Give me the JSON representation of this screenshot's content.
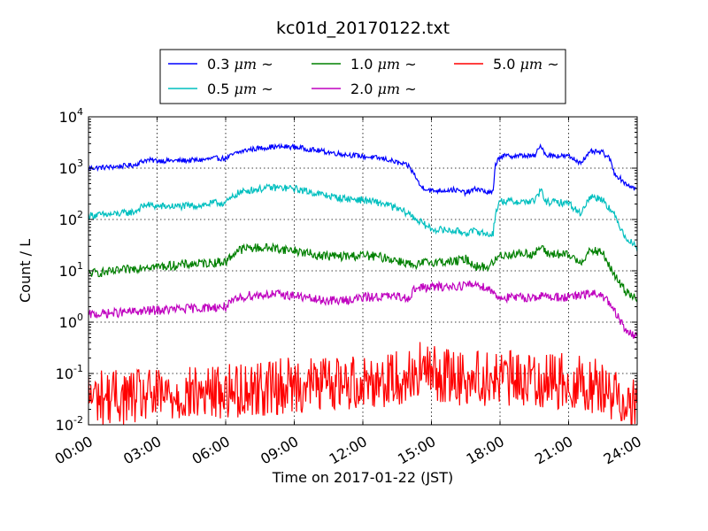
{
  "chart_data": {
    "type": "line",
    "title": "kc01d_20170122.txt",
    "xlabel": "Time on 2017-01-22 (JST)",
    "ylabel": "Count / L",
    "x_range_hours": [
      0,
      24
    ],
    "x_ticks": [
      {
        "hour": 0,
        "label": "00:00"
      },
      {
        "hour": 3,
        "label": "03:00"
      },
      {
        "hour": 6,
        "label": "06:00"
      },
      {
        "hour": 9,
        "label": "09:00"
      },
      {
        "hour": 12,
        "label": "12:00"
      },
      {
        "hour": 15,
        "label": "15:00"
      },
      {
        "hour": 18,
        "label": "18:00"
      },
      {
        "hour": 21,
        "label": "21:00"
      },
      {
        "hour": 24,
        "label": "24:00"
      }
    ],
    "y_scale": "log",
    "ylim": [
      0.01,
      10000
    ],
    "y_ticks": [
      {
        "base": "10",
        "exp": "-2",
        "value": 0.01
      },
      {
        "base": "10",
        "exp": "-1",
        "value": 0.1
      },
      {
        "base": "10",
        "exp": "0",
        "value": 1
      },
      {
        "base": "10",
        "exp": "1",
        "value": 10
      },
      {
        "base": "10",
        "exp": "2",
        "value": 100
      },
      {
        "base": "10",
        "exp": "3",
        "value": 1000
      },
      {
        "base": "10",
        "exp": "4",
        "value": 10000
      }
    ],
    "grid": true,
    "legend_position": "top-center, above plot",
    "series": [
      {
        "name": "0.3 μm ~",
        "label_text": "0.3 ",
        "label_unit": "μm",
        "label_suffix": " ~",
        "color": "#0000ff",
        "points": [
          [
            0,
            1000
          ],
          [
            1,
            1050
          ],
          [
            2,
            1150
          ],
          [
            2.5,
            1450
          ],
          [
            3,
            1400
          ],
          [
            4,
            1400
          ],
          [
            5,
            1450
          ],
          [
            5.5,
            1550
          ],
          [
            6,
            1550
          ],
          [
            6.5,
            2000
          ],
          [
            7,
            2300
          ],
          [
            8,
            2600
          ],
          [
            9,
            2600
          ],
          [
            10,
            2200
          ],
          [
            11,
            1900
          ],
          [
            12,
            1700
          ],
          [
            13,
            1500
          ],
          [
            14,
            1100
          ],
          [
            14.3,
            700
          ],
          [
            14.5,
            450
          ],
          [
            15,
            360
          ],
          [
            16,
            380
          ],
          [
            16.5,
            330
          ],
          [
            17,
            400
          ],
          [
            17.5,
            330
          ],
          [
            17.7,
            340
          ],
          [
            17.8,
            1200
          ],
          [
            18,
            1700
          ],
          [
            19,
            1750
          ],
          [
            19.5,
            1700
          ],
          [
            19.8,
            2800
          ],
          [
            20,
            1800
          ],
          [
            21,
            1700
          ],
          [
            21.5,
            1300
          ],
          [
            21.8,
            1700
          ],
          [
            22,
            2100
          ],
          [
            22.5,
            2000
          ],
          [
            22.8,
            1500
          ],
          [
            23,
            800
          ],
          [
            23.5,
            500
          ],
          [
            24,
            380
          ]
        ],
        "noise": 0.05
      },
      {
        "name": "0.5 μm ~",
        "label_text": "0.5 ",
        "label_unit": "μm",
        "label_suffix": " ~",
        "color": "#00bfbf",
        "points": [
          [
            0,
            120
          ],
          [
            1,
            125
          ],
          [
            2,
            140
          ],
          [
            2.5,
            195
          ],
          [
            3,
            180
          ],
          [
            4,
            180
          ],
          [
            5,
            190
          ],
          [
            5.5,
            210
          ],
          [
            6,
            210
          ],
          [
            6.5,
            320
          ],
          [
            7,
            370
          ],
          [
            8,
            420
          ],
          [
            9,
            400
          ],
          [
            10,
            320
          ],
          [
            11,
            260
          ],
          [
            12,
            240
          ],
          [
            13,
            200
          ],
          [
            14,
            130
          ],
          [
            14.5,
            90
          ],
          [
            15,
            65
          ],
          [
            16,
            60
          ],
          [
            16.5,
            55
          ],
          [
            17,
            60
          ],
          [
            17.5,
            50
          ],
          [
            17.7,
            55
          ],
          [
            17.8,
            130
          ],
          [
            18,
            230
          ],
          [
            19,
            220
          ],
          [
            19.5,
            230
          ],
          [
            19.8,
            370
          ],
          [
            20,
            220
          ],
          [
            21,
            210
          ],
          [
            21.5,
            130
          ],
          [
            21.8,
            220
          ],
          [
            22,
            280
          ],
          [
            22.5,
            250
          ],
          [
            23,
            120
          ],
          [
            23.5,
            45
          ],
          [
            24,
            28
          ]
        ],
        "noise": 0.07
      },
      {
        "name": "1.0 μm ~",
        "label_text": "1.0 ",
        "label_unit": "μm",
        "label_suffix": " ~",
        "color": "#008000",
        "points": [
          [
            0,
            9
          ],
          [
            1,
            9.5
          ],
          [
            2,
            11
          ],
          [
            2.5,
            12.5
          ],
          [
            3,
            12
          ],
          [
            4,
            13
          ],
          [
            5,
            14
          ],
          [
            6,
            15
          ],
          [
            6.5,
            25
          ],
          [
            7,
            28
          ],
          [
            8,
            28
          ],
          [
            9,
            25
          ],
          [
            10,
            20
          ],
          [
            11,
            19
          ],
          [
            12,
            20
          ],
          [
            13,
            18
          ],
          [
            14,
            14
          ],
          [
            14.3,
            11
          ],
          [
            14.5,
            14
          ],
          [
            15,
            15
          ],
          [
            16,
            15
          ],
          [
            16.5,
            17
          ],
          [
            17,
            12
          ],
          [
            17.5,
            12
          ],
          [
            17.8,
            16
          ],
          [
            18,
            20
          ],
          [
            19,
            22
          ],
          [
            19.5,
            21
          ],
          [
            19.8,
            30
          ],
          [
            20,
            22
          ],
          [
            21,
            20
          ],
          [
            21.5,
            15
          ],
          [
            21.8,
            20
          ],
          [
            22,
            25
          ],
          [
            22.5,
            22
          ],
          [
            23,
            8
          ],
          [
            23.5,
            4
          ],
          [
            24,
            3
          ]
        ],
        "noise": 0.09
      },
      {
        "name": "2.0 μm ~",
        "label_text": "2.0 ",
        "label_unit": "μm",
        "label_suffix": " ~",
        "color": "#bf00bf",
        "points": [
          [
            0,
            1.4
          ],
          [
            1,
            1.5
          ],
          [
            2,
            1.6
          ],
          [
            3,
            1.7
          ],
          [
            4,
            1.8
          ],
          [
            5,
            1.9
          ],
          [
            6,
            2.0
          ],
          [
            6.5,
            2.8
          ],
          [
            7,
            3.3
          ],
          [
            8,
            3.5
          ],
          [
            9,
            3.3
          ],
          [
            10,
            2.7
          ],
          [
            11,
            2.6
          ],
          [
            12,
            3.0
          ],
          [
            13,
            3.2
          ],
          [
            14,
            3.0
          ],
          [
            14.3,
            4.6
          ],
          [
            15,
            4.8
          ],
          [
            16,
            5.0
          ],
          [
            17,
            5.5
          ],
          [
            17.5,
            4.5
          ],
          [
            18,
            3.0
          ],
          [
            19,
            3.0
          ],
          [
            20,
            3.2
          ],
          [
            21,
            3.0
          ],
          [
            22,
            3.6
          ],
          [
            22.5,
            3.3
          ],
          [
            23,
            1.6
          ],
          [
            23.5,
            0.7
          ],
          [
            24,
            0.5
          ]
        ],
        "noise": 0.09
      },
      {
        "name": "5.0 μm ~",
        "label_text": "5.0 ",
        "label_unit": "μm",
        "label_suffix": " ~",
        "color": "#ff0000",
        "points": [
          [
            0,
            0.035
          ],
          [
            3,
            0.035
          ],
          [
            6,
            0.045
          ],
          [
            9,
            0.06
          ],
          [
            12,
            0.07
          ],
          [
            14,
            0.085
          ],
          [
            14.5,
            0.12
          ],
          [
            15,
            0.1
          ],
          [
            16,
            0.085
          ],
          [
            18,
            0.08
          ],
          [
            21,
            0.07
          ],
          [
            22,
            0.06
          ],
          [
            23,
            0.04
          ],
          [
            24,
            0.025
          ]
        ],
        "noise": 0.55,
        "floor": 0.01
      }
    ]
  }
}
